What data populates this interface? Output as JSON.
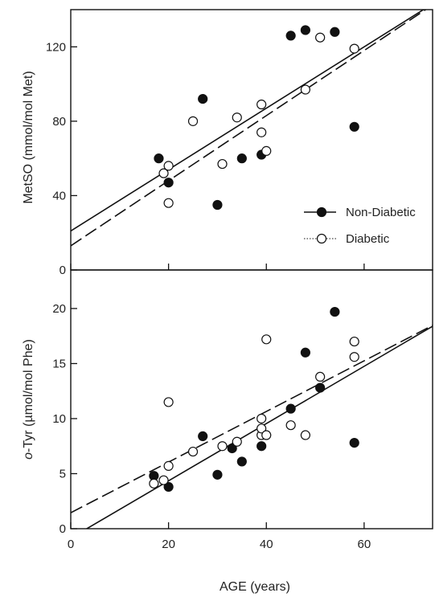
{
  "figure": {
    "xlabel": "AGE (years)"
  },
  "chart_data": [
    {
      "type": "scatter",
      "title": "",
      "xlabel": "",
      "ylabel": "MetSO (mmol/mol Met)",
      "xlim": [
        0,
        74
      ],
      "ylim": [
        0,
        140
      ],
      "xticks": [
        0,
        20,
        40,
        60
      ],
      "yticks": [
        0,
        40,
        80,
        120
      ],
      "legend": {
        "placement": "middle-right"
      },
      "series": [
        {
          "name": "Non-Diabetic",
          "marker": "filled-circle",
          "points": [
            [
              18,
              60
            ],
            [
              20,
              47
            ],
            [
              27,
              92
            ],
            [
              30,
              35
            ],
            [
              35,
              60
            ],
            [
              39,
              62
            ],
            [
              45,
              126
            ],
            [
              48,
              129
            ],
            [
              54,
              128
            ],
            [
              58,
              77
            ]
          ],
          "fit": {
            "style": "solid",
            "slope": 1.65,
            "intercept": 21
          }
        },
        {
          "name": "Diabetic",
          "marker": "open-circle",
          "points": [
            [
              19,
              52
            ],
            [
              20,
              56
            ],
            [
              20,
              36
            ],
            [
              25,
              80
            ],
            [
              31,
              57
            ],
            [
              34,
              82
            ],
            [
              39,
              89
            ],
            [
              39,
              74
            ],
            [
              40,
              64
            ],
            [
              48,
              97
            ],
            [
              51,
              125
            ],
            [
              58,
              119
            ]
          ],
          "fit": {
            "style": "dashed",
            "slope": 1.75,
            "intercept": 13
          }
        }
      ]
    },
    {
      "type": "scatter",
      "title": "",
      "xlabel": "",
      "ylabel_prefix": "o",
      "ylabel": "-Tyr (µmol/mol Phe)",
      "xlim": [
        0,
        74
      ],
      "ylim": [
        0,
        23.5
      ],
      "xticks": [
        0,
        20,
        40,
        60
      ],
      "xtick_labels": [
        "0",
        "20",
        "40",
        "60"
      ],
      "yticks": [
        0,
        5,
        10,
        15,
        20
      ],
      "series": [
        {
          "name": "Non-Diabetic",
          "marker": "filled-circle",
          "points": [
            [
              17,
              4.8
            ],
            [
              20,
              3.8
            ],
            [
              27,
              8.4
            ],
            [
              30,
              4.9
            ],
            [
              33,
              7.3
            ],
            [
              35,
              6.1
            ],
            [
              39,
              7.5
            ],
            [
              45,
              10.9
            ],
            [
              48,
              16.0
            ],
            [
              51,
              12.8
            ],
            [
              54,
              19.7
            ],
            [
              58,
              7.8
            ]
          ],
          "fit": {
            "style": "solid",
            "slope": 0.26,
            "intercept": -0.85
          }
        },
        {
          "name": "Diabetic",
          "marker": "open-circle",
          "points": [
            [
              17,
              4.1
            ],
            [
              19,
              4.4
            ],
            [
              20,
              5.7
            ],
            [
              20,
              11.5
            ],
            [
              25,
              7.0
            ],
            [
              31,
              7.5
            ],
            [
              34,
              7.9
            ],
            [
              39,
              8.5
            ],
            [
              39,
              9.1
            ],
            [
              39,
              10.0
            ],
            [
              40,
              8.5
            ],
            [
              40,
              17.2
            ],
            [
              45,
              9.4
            ],
            [
              48,
              8.5
            ],
            [
              51,
              13.8
            ],
            [
              58,
              15.6
            ],
            [
              58,
              17.0
            ]
          ],
          "fit": {
            "style": "dashed",
            "slope": 0.23,
            "intercept": 1.45
          }
        }
      ]
    }
  ]
}
